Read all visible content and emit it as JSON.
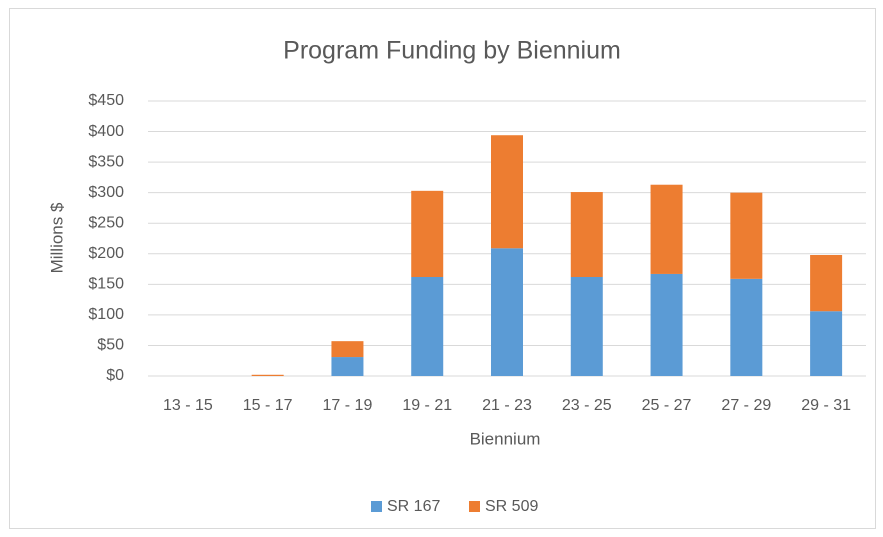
{
  "chart_data": {
    "type": "stacked_bar",
    "title": "Program Funding by Biennium",
    "x_label": "Biennium",
    "y_label": "Millions $",
    "categories": [
      "13 - 15",
      "15 - 17",
      "17 - 19",
      "19 - 21",
      "21 - 23",
      "23 - 25",
      "25 - 27",
      "27 - 29",
      "29 - 31"
    ],
    "series": [
      {
        "name": "SR 167",
        "color": "#5b9bd5",
        "values": [
          0,
          0,
          31,
          162,
          209,
          162,
          167,
          159,
          106
        ]
      },
      {
        "name": "SR 509",
        "color": "#ed7d31",
        "values": [
          0,
          2,
          26,
          141,
          185,
          139,
          146,
          141,
          92
        ]
      }
    ],
    "ylim": [
      0,
      450
    ],
    "yticks": [
      {
        "value": 0,
        "label": "$0"
      },
      {
        "value": 50,
        "label": "$50"
      },
      {
        "value": 100,
        "label": "$100"
      },
      {
        "value": 150,
        "label": "$150"
      },
      {
        "value": 200,
        "label": "$200"
      },
      {
        "value": 250,
        "label": "$250"
      },
      {
        "value": 300,
        "label": "$300"
      },
      {
        "value": 350,
        "label": "$350"
      },
      {
        "value": 400,
        "label": "$400"
      },
      {
        "value": 450,
        "label": "$450"
      }
    ],
    "grid": true,
    "legend": "bottom"
  }
}
